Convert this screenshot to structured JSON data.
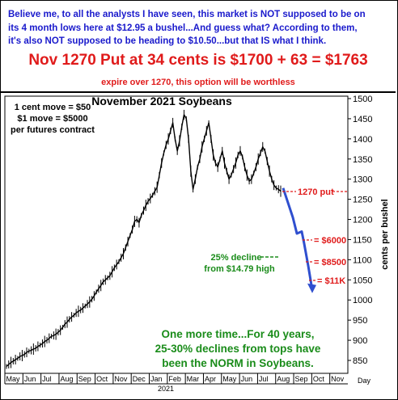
{
  "header": {
    "line1": "Believe me, to all the analysts I have seen, this market is NOT supposed to be on",
    "line2": "its 4 month lows here at $12.95 a bushel...And guess what? According to them,",
    "line3": "it's also NOT supposed to be heading to $10.50...but that IS what I think.",
    "headline": "Nov 1270 Put at 34 cents is $1700 + 63 = $1763",
    "subline": "expire over 1270, this option will be worthless"
  },
  "chart_data": {
    "type": "line",
    "title": "November 2021 Soybeans",
    "ylabel": "cents per bushel",
    "xlabel": "Day",
    "ylim": [
      800,
      1500
    ],
    "yticks": [
      850,
      900,
      950,
      1000,
      1050,
      1100,
      1150,
      1200,
      1250,
      1300,
      1350,
      1400,
      1450,
      1500
    ],
    "x_tick_labels": [
      "May",
      "Jun",
      "Jul",
      "Aug",
      "Sep",
      "Oct",
      "Nov",
      "Dec",
      "Jan",
      "Feb",
      "Mar",
      "Apr",
      "May",
      "Jun",
      "Jul",
      "Aug",
      "Sep",
      "Oct",
      "Nov"
    ],
    "year_label": "2021",
    "grid": false,
    "series": [
      {
        "values": [
          835,
          840,
          845,
          848,
          852,
          855,
          860,
          862,
          865,
          870,
          873,
          875,
          878,
          880,
          885,
          888,
          892,
          897,
          900,
          905,
          910,
          912,
          915,
          920,
          925,
          932,
          940,
          945,
          952,
          958,
          962,
          968,
          972,
          975,
          980,
          985,
          990,
          995,
          1002,
          1010,
          1020,
          1028,
          1036,
          1045,
          1050,
          1055,
          1060,
          1070,
          1080,
          1088,
          1095,
          1105,
          1115,
          1130,
          1145,
          1160,
          1175,
          1195,
          1200,
          1192,
          1210,
          1222,
          1235,
          1245,
          1252,
          1260,
          1270,
          1280,
          1310,
          1340,
          1365,
          1385,
          1400,
          1420,
          1440,
          1400,
          1370,
          1395,
          1430,
          1460,
          1450,
          1400,
          1320,
          1275,
          1300,
          1330,
          1350,
          1380,
          1400,
          1420,
          1440,
          1400,
          1360,
          1340,
          1330,
          1350,
          1370,
          1340,
          1320,
          1300,
          1310,
          1325,
          1340,
          1360,
          1370,
          1355,
          1330,
          1310,
          1295,
          1300,
          1315,
          1330,
          1350,
          1365,
          1380,
          1370,
          1345,
          1320,
          1300,
          1285,
          1278,
          1275,
          1270
        ]
      }
    ],
    "projection": [
      1278,
      1205,
      1165,
      1170,
      1140,
      1085,
      1025
    ]
  },
  "annotations": {
    "move_line1": "1 cent move = $50",
    "move_line2": "$1 move = $5000",
    "move_line3": "per futures contract",
    "put_label": "1270 put",
    "decline_line1": "25% decline",
    "decline_line2": "from $14.79 high",
    "p6000": "= $6000",
    "p8500": "= $8500",
    "p11k": "= $11K",
    "bottom_line1": "One more time...For 40 years,",
    "bottom_line2": "25-30% declines from tops have",
    "bottom_line3": "been the NORM in Soybeans."
  },
  "colors": {
    "blue_text": "#1a1acc",
    "red_text": "#e01b1b",
    "green_text": "#1a8c1a",
    "arrow": "#2f4fcf"
  }
}
